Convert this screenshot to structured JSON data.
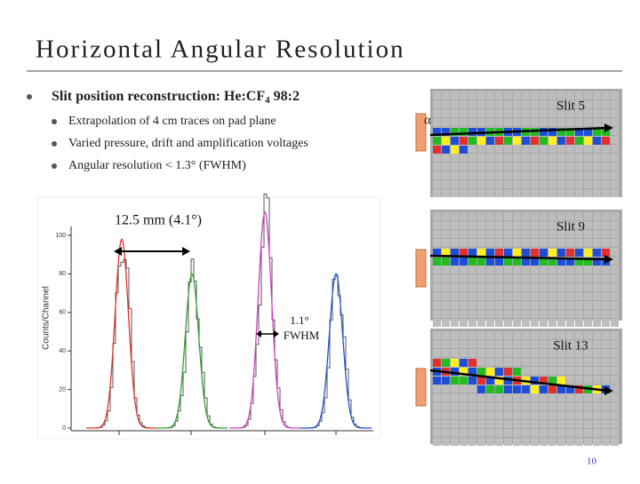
{
  "title": "Horizontal Angular Resolution",
  "bullet": {
    "parts": [
      "Slit position reconstruction: He:CF",
      "4",
      " 98:2"
    ]
  },
  "sub_bullets": [
    "Extrapolation of 4 cm traces on pad plane",
    "Varied pressure, drift and amplification voltages",
    "Angular resolution < 1.3° (FWHM)"
  ],
  "histogram": {
    "y_label": "Counts/Channel",
    "ylim": [
      0,
      100
    ],
    "yticks": [
      0,
      20,
      40,
      60,
      80,
      100
    ],
    "peaks": [
      {
        "height": 98,
        "color": "#e03030"
      },
      {
        "height": 80,
        "color": "#30a030"
      },
      {
        "height": 112,
        "color": "#d040c0"
      },
      {
        "height": 80,
        "color": "#2050d0"
      }
    ],
    "annotations": [
      "12.5 mm (4.1°)",
      "1.1°",
      "FWHM"
    ]
  },
  "pad_panels": {
    "alpha": "α",
    "labels": [
      "Slit 5",
      "Slit 9",
      "Slit 13"
    ]
  },
  "page_number": "10"
}
